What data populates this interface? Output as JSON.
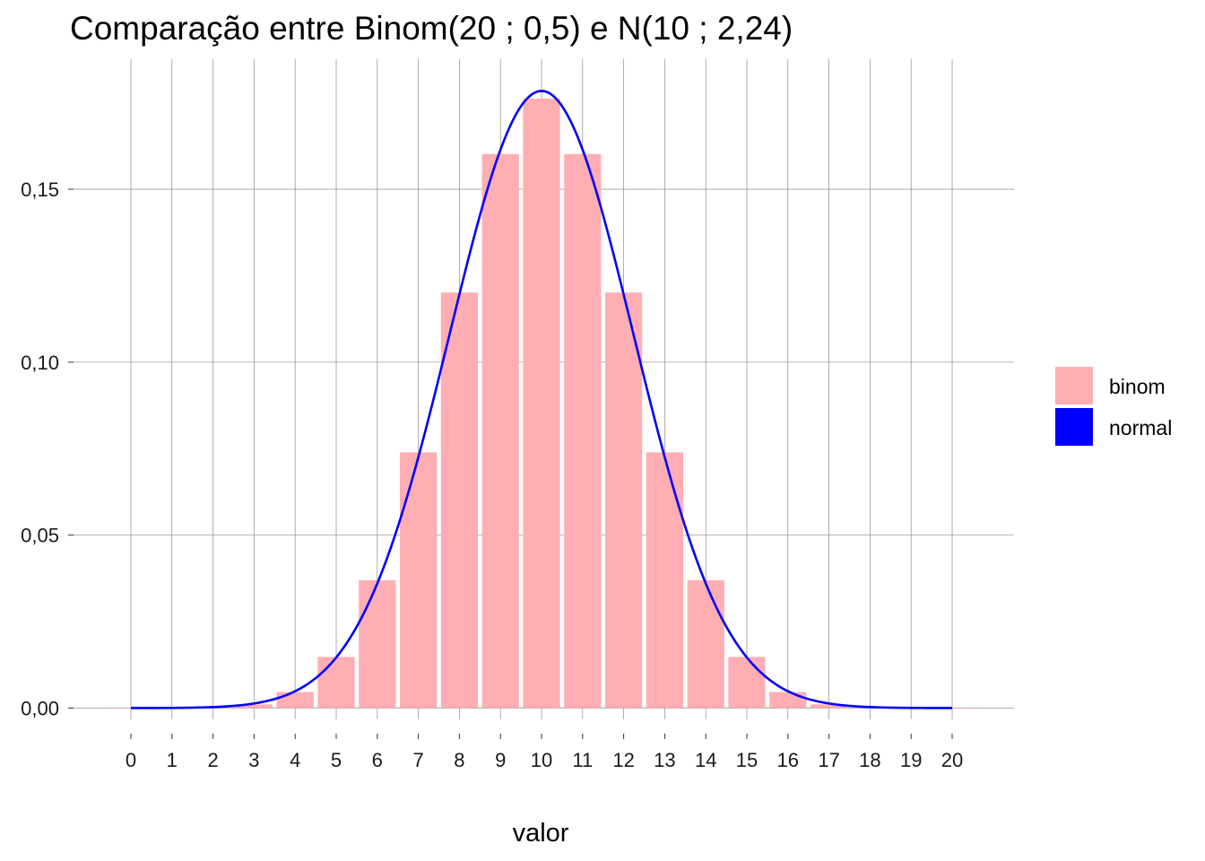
{
  "chart_data": {
    "type": "bar",
    "title": "Comparação entre Binom(20 ; 0,5)  e  N(10 ; 2,24)",
    "xlabel": "valor",
    "ylabel": "",
    "x": [
      0,
      1,
      2,
      3,
      4,
      5,
      6,
      7,
      8,
      9,
      10,
      11,
      12,
      13,
      14,
      15,
      16,
      17,
      18,
      19,
      20
    ],
    "x_tick_labels": [
      "0",
      "1",
      "2",
      "3",
      "4",
      "5",
      "6",
      "7",
      "8",
      "9",
      "10",
      "11",
      "12",
      "13",
      "14",
      "15",
      "16",
      "17",
      "18",
      "19",
      "20"
    ],
    "xlim": [
      -0.5,
      21
    ],
    "ylim": [
      -0.005,
      0.185
    ],
    "y_ticks": [
      0,
      0.05,
      0.1,
      0.15
    ],
    "y_tick_labels": [
      "0,00",
      "0,05",
      "0,10",
      "0,15"
    ],
    "grid": true,
    "legend_position": "right",
    "series": [
      {
        "name": "binom",
        "type": "bar",
        "color": "#ffaeb3",
        "values": [
          1e-06,
          1.9e-05,
          0.000181,
          0.001087,
          0.004621,
          0.014786,
          0.036964,
          0.073929,
          0.120134,
          0.160179,
          0.176197,
          0.160179,
          0.120134,
          0.073929,
          0.036964,
          0.014786,
          0.004621,
          0.001087,
          0.000181,
          1.9e-05,
          1e-06
        ]
      },
      {
        "name": "normal",
        "type": "line",
        "color": "#0000ff",
        "mean": 10,
        "sd": 2.236,
        "x_range": [
          0,
          20
        ]
      }
    ]
  }
}
